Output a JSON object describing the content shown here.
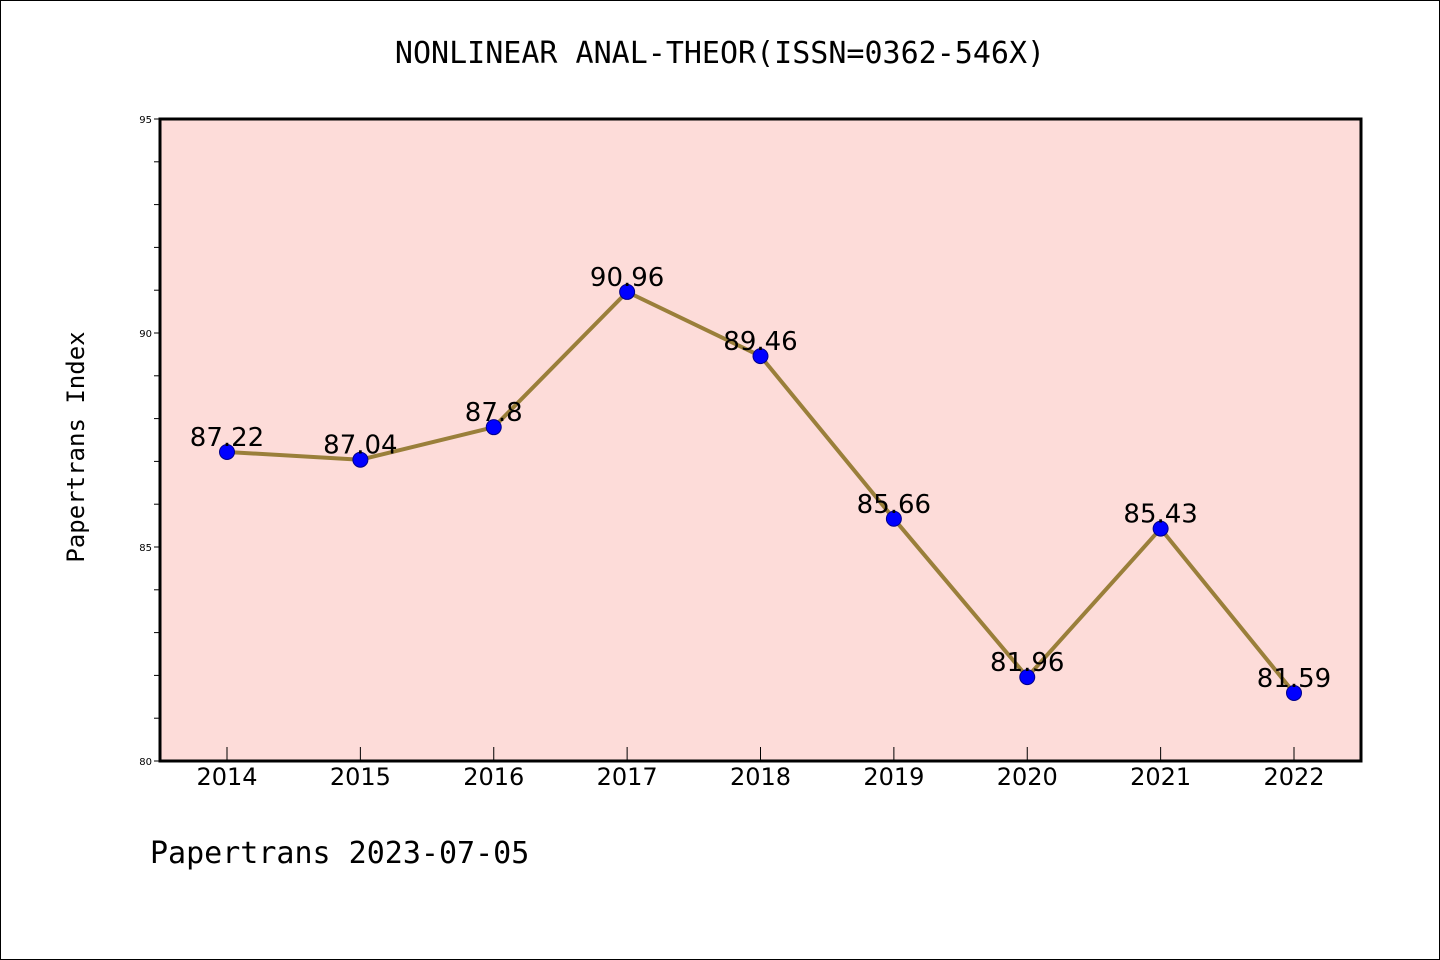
{
  "title": "NONLINEAR ANAL-THEOR(ISSN=0362-546X)",
  "footer": "Papertrans 2023-07-05",
  "colors": {
    "plot_bg": "#fddcd9",
    "line": "#9a7f3a",
    "marker": "#0000ff"
  },
  "chart_data": {
    "type": "line",
    "title": "NONLINEAR ANAL-THEOR(ISSN=0362-546X)",
    "xlabel": "",
    "ylabel": "Papertrans Index",
    "categories": [
      "2014",
      "2015",
      "2016",
      "2017",
      "2018",
      "2019",
      "2020",
      "2021",
      "2022"
    ],
    "values": [
      87.22,
      87.04,
      87.8,
      90.96,
      89.46,
      85.66,
      81.96,
      85.43,
      81.59
    ],
    "data_labels": [
      "87.22",
      "87.04",
      "87.8",
      "90.96",
      "89.46",
      "85.66",
      "81.96",
      "85.43",
      "81.59"
    ],
    "ylim": [
      80,
      95
    ],
    "yticks": [
      "80",
      "85",
      "90",
      "95"
    ],
    "grid": false,
    "legend": "none"
  }
}
